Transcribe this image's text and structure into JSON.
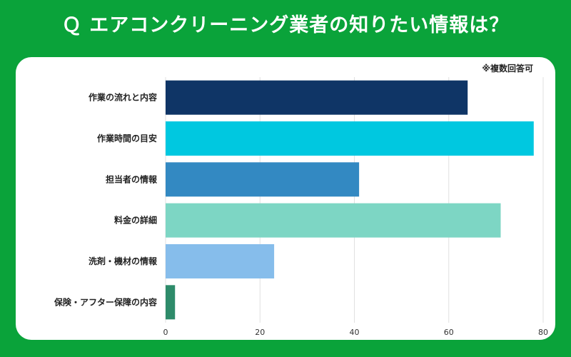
{
  "title": "Ｑ エアコンクリーニング業者の知りたい情報は？",
  "colors": {
    "background": "#0aa33a",
    "panel": "#ffffff",
    "grid": "#e0e0e0",
    "bars": [
      "#0f3566",
      "#00c8e0",
      "#3389c2",
      "#7dd6c4",
      "#86bdeb",
      "#2e8b6a"
    ]
  },
  "chart_data": {
    "type": "bar",
    "orientation": "horizontal",
    "note": "※複数回答可",
    "categories": [
      "作業の流れと内容",
      "作業時間の目安",
      "担当者の情報",
      "料金の詳細",
      "洗剤・機材の情報",
      "保険・アフター保障の内容"
    ],
    "values": [
      64,
      78,
      41,
      71,
      23,
      2
    ],
    "xlim": [
      0,
      80
    ],
    "xticks": [
      0,
      20,
      40,
      60,
      80
    ],
    "grid": true,
    "xlabel": "",
    "ylabel": ""
  }
}
